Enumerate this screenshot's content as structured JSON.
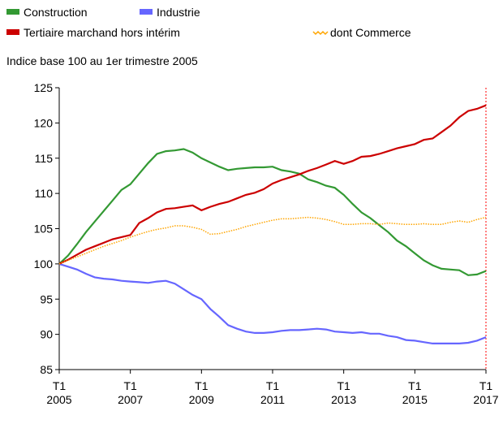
{
  "chart_data": {
    "type": "line",
    "subtitle": "Indice base 100 au 1er trimestre 2005",
    "categories": [
      "T1 2005",
      null,
      null,
      null,
      null,
      null,
      null,
      null,
      "T1 2007",
      null,
      null,
      null,
      null,
      null,
      null,
      null,
      "T1 2009",
      null,
      null,
      null,
      null,
      null,
      null,
      null,
      "T1 2011",
      null,
      null,
      null,
      null,
      null,
      null,
      null,
      "T1 2013",
      null,
      null,
      null,
      null,
      null,
      null,
      null,
      "T1 2015",
      null,
      null,
      null,
      null,
      null,
      null,
      null,
      "T1 2017"
    ],
    "series": [
      {
        "name": "Construction",
        "color": "#339933",
        "values": [
          100,
          101.2,
          102.8,
          104.5,
          106,
          107.5,
          109,
          110.5,
          111.3,
          112.8,
          114.3,
          115.6,
          116,
          116.1,
          116.3,
          115.8,
          115,
          114.4,
          113.8,
          113.3,
          113.5,
          113.6,
          113.7,
          113.7,
          113.8,
          113.3,
          113.1,
          112.8,
          112,
          111.6,
          111.1,
          110.8,
          109.8,
          108.5,
          107.3,
          106.5,
          105.5,
          104.5,
          103.3,
          102.5,
          101.5,
          100.5,
          99.8,
          99.3,
          99.2,
          99.1,
          98.4,
          98.5,
          99
        ]
      },
      {
        "name": "Industrie",
        "color": "#6666ff",
        "values": [
          100,
          99.6,
          99.2,
          98.6,
          98.1,
          97.9,
          97.8,
          97.6,
          97.5,
          97.4,
          97.3,
          97.5,
          97.6,
          97.2,
          96.4,
          95.6,
          95,
          93.6,
          92.5,
          91.3,
          90.8,
          90.4,
          90.2,
          90.2,
          90.3,
          90.5,
          90.6,
          90.6,
          90.7,
          90.8,
          90.7,
          90.4,
          90.3,
          90.2,
          90.3,
          90.1,
          90.1,
          89.8,
          89.6,
          89.2,
          89.1,
          88.9,
          88.7,
          88.7,
          88.7,
          88.7,
          88.8,
          89.1,
          89.6
        ]
      },
      {
        "name": "Tertiaire marchand hors intérim",
        "color": "#cc0000",
        "values": [
          100,
          100.6,
          101.3,
          102,
          102.5,
          103,
          103.5,
          103.8,
          104.1,
          105.8,
          106.5,
          107.3,
          107.8,
          107.9,
          108.1,
          108.3,
          107.6,
          108.1,
          108.5,
          108.8,
          109.3,
          109.8,
          110.1,
          110.6,
          111.4,
          111.9,
          112.3,
          112.7,
          113.2,
          113.6,
          114.1,
          114.6,
          114.2,
          114.6,
          115.2,
          115.3,
          115.6,
          116,
          116.4,
          116.7,
          117,
          117.6,
          117.8,
          118.7,
          119.6,
          120.8,
          121.7,
          122,
          122.5
        ]
      },
      {
        "name": "dont Commerce",
        "color": "#ffa500",
        "line_style": "dotted",
        "values": [
          100,
          100.5,
          101,
          101.5,
          102,
          102.5,
          102.9,
          103.3,
          103.8,
          104.2,
          104.6,
          104.9,
          105.1,
          105.4,
          105.4,
          105.2,
          104.9,
          104.2,
          104.3,
          104.6,
          104.9,
          105.3,
          105.6,
          105.9,
          106.2,
          106.4,
          106.4,
          106.5,
          106.6,
          106.5,
          106.3,
          106,
          105.6,
          105.6,
          105.7,
          105.7,
          105.6,
          105.8,
          105.7,
          105.6,
          105.6,
          105.7,
          105.6,
          105.6,
          105.9,
          106.1,
          105.9,
          106.3,
          106.6
        ]
      }
    ],
    "ylim": [
      85,
      125
    ],
    "yticks": [
      85,
      90,
      95,
      100,
      105,
      110,
      115,
      120,
      125
    ]
  }
}
